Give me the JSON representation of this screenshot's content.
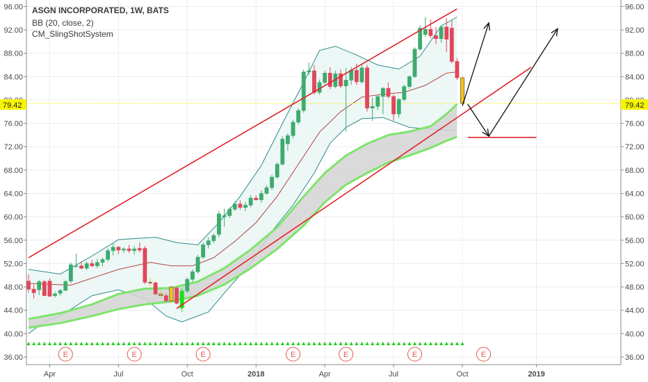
{
  "legend": {
    "title": "ASGN INCORPORATED, 1W, BATS",
    "line1": "BB (20, close, 2)",
    "line2": "CM_SlingShotSystem"
  },
  "colors": {
    "up": "#3dab6d",
    "down": "#e0475a",
    "slingshot_candle": "#f6c31c",
    "slingshot_up": "#17e017",
    "bb_line": "#2f8a8a",
    "bb_fill": "#eaf6f5",
    "basis": "#b2453f",
    "ema_band": "#7de46a",
    "ema_fill": "#d4d4d4",
    "trendline": "#e0222a",
    "arrow": "#111111",
    "current_price_line": "#f5f500",
    "triangle": "#17d017",
    "earnings": "#e0584a"
  },
  "current_price": "79.42",
  "y_ticks": [
    "96.00",
    "92.00",
    "88.00",
    "84.00",
    "80.00",
    "76.00",
    "72.00",
    "68.00",
    "64.00",
    "60.00",
    "56.00",
    "52.00",
    "48.00",
    "44.00",
    "40.00",
    "36.00"
  ],
  "x_ticks": [
    "Apr",
    "Jul",
    "Oct",
    "2018",
    "Apr",
    "Jul",
    "Oct",
    "2019"
  ],
  "earnings_label": "E",
  "chart_data": {
    "type": "candlestick",
    "interval": "1W",
    "ylim": [
      35.0,
      97.6
    ],
    "grid": true,
    "x_axis": {
      "start": "2017-03-06",
      "tick_labels": [
        "Apr",
        "Jul",
        "Oct",
        "2018",
        "Apr",
        "Jul",
        "Oct",
        "2019"
      ],
      "tick_dates": [
        "2017-04-03",
        "2017-07-03",
        "2017-10-02",
        "2018-01-01",
        "2018-04-02",
        "2018-07-02",
        "2018-10-01",
        "2019-01-07"
      ]
    },
    "candles": [
      {
        "date": "2017-03-06",
        "o": 49.0,
        "h": 50.2,
        "l": 47.0,
        "c": 47.6
      },
      {
        "date": "2017-03-13",
        "o": 47.6,
        "h": 48.4,
        "l": 46.0,
        "c": 47.0
      },
      {
        "date": "2017-03-20",
        "o": 47.5,
        "h": 49.2,
        "l": 46.6,
        "c": 48.9
      },
      {
        "date": "2017-03-27",
        "o": 48.9,
        "h": 49.2,
        "l": 46.4,
        "c": 46.5
      },
      {
        "date": "2017-04-03",
        "o": 49.0,
        "h": 49.5,
        "l": 46.3,
        "c": 46.4
      },
      {
        "date": "2017-04-10",
        "o": 46.5,
        "h": 47.2,
        "l": 46.2,
        "c": 46.8
      },
      {
        "date": "2017-04-17",
        "o": 46.9,
        "h": 47.6,
        "l": 46.5,
        "c": 47.4
      },
      {
        "date": "2017-04-24",
        "o": 47.4,
        "h": 49.2,
        "l": 47.3,
        "c": 48.9
      },
      {
        "date": "2017-05-01",
        "o": 49.0,
        "h": 52.2,
        "l": 48.6,
        "c": 51.8
      },
      {
        "date": "2017-05-08",
        "o": 51.5,
        "h": 53.7,
        "l": 51.3,
        "c": 51.6
      },
      {
        "date": "2017-05-15",
        "o": 51.6,
        "h": 52.4,
        "l": 51.0,
        "c": 51.2
      },
      {
        "date": "2017-05-22",
        "o": 51.2,
        "h": 52.3,
        "l": 50.9,
        "c": 52.0
      },
      {
        "date": "2017-05-29",
        "o": 52.0,
        "h": 52.6,
        "l": 51.4,
        "c": 51.6
      },
      {
        "date": "2017-06-05",
        "o": 51.6,
        "h": 52.8,
        "l": 51.2,
        "c": 52.2
      },
      {
        "date": "2017-06-12",
        "o": 52.2,
        "h": 53.0,
        "l": 51.5,
        "c": 52.7
      },
      {
        "date": "2017-06-19",
        "o": 52.7,
        "h": 54.6,
        "l": 52.3,
        "c": 54.2
      },
      {
        "date": "2017-06-26",
        "o": 54.2,
        "h": 55.4,
        "l": 53.4,
        "c": 54.8
      },
      {
        "date": "2017-07-03",
        "o": 54.8,
        "h": 55.0,
        "l": 53.6,
        "c": 54.3
      },
      {
        "date": "2017-07-10",
        "o": 54.3,
        "h": 54.8,
        "l": 53.8,
        "c": 54.5
      },
      {
        "date": "2017-07-17",
        "o": 54.5,
        "h": 55.2,
        "l": 53.8,
        "c": 54.2
      },
      {
        "date": "2017-07-24",
        "o": 54.2,
        "h": 55.0,
        "l": 53.5,
        "c": 54.5
      },
      {
        "date": "2017-07-31",
        "o": 54.6,
        "h": 55.6,
        "l": 53.9,
        "c": 54.3
      },
      {
        "date": "2017-08-07",
        "o": 54.6,
        "h": 55.0,
        "l": 48.5,
        "c": 48.8
      },
      {
        "date": "2017-08-14",
        "o": 48.8,
        "h": 49.5,
        "l": 48.0,
        "c": 48.7
      },
      {
        "date": "2017-08-21",
        "o": 48.7,
        "h": 48.9,
        "l": 46.6,
        "c": 46.8
      },
      {
        "date": "2017-08-28",
        "o": 46.8,
        "h": 47.4,
        "l": 46.2,
        "c": 46.5
      },
      {
        "date": "2017-09-04",
        "o": 46.5,
        "h": 46.9,
        "l": 45.4,
        "c": 45.6
      },
      {
        "date": "2017-09-11",
        "o": 45.6,
        "h": 48.2,
        "l": 45.3,
        "c": 48.0
      },
      {
        "date": "2017-09-18",
        "o": 47.8,
        "h": 48.0,
        "l": 45.0,
        "c": 45.2
      },
      {
        "date": "2017-09-25",
        "o": 44.4,
        "h": 47.8,
        "l": 43.7,
        "c": 47.3
      },
      {
        "date": "2017-10-02",
        "o": 47.3,
        "h": 49.6,
        "l": 47.0,
        "c": 49.3
      },
      {
        "date": "2017-10-09",
        "o": 49.3,
        "h": 51.0,
        "l": 48.9,
        "c": 50.6
      },
      {
        "date": "2017-10-16",
        "o": 50.6,
        "h": 53.5,
        "l": 50.3,
        "c": 53.1
      },
      {
        "date": "2017-10-23",
        "o": 53.1,
        "h": 55.6,
        "l": 52.8,
        "c": 55.2
      },
      {
        "date": "2017-10-30",
        "o": 55.2,
        "h": 56.5,
        "l": 54.6,
        "c": 55.9
      },
      {
        "date": "2017-11-06",
        "o": 55.9,
        "h": 57.1,
        "l": 55.5,
        "c": 56.8
      },
      {
        "date": "2017-11-13",
        "o": 57.0,
        "h": 61.0,
        "l": 56.5,
        "c": 60.5
      },
      {
        "date": "2017-11-20",
        "o": 60.0,
        "h": 61.4,
        "l": 58.3,
        "c": 60.2
      },
      {
        "date": "2017-11-27",
        "o": 60.2,
        "h": 61.6,
        "l": 59.8,
        "c": 61.3
      },
      {
        "date": "2017-12-04",
        "o": 61.3,
        "h": 62.7,
        "l": 61.0,
        "c": 62.2
      },
      {
        "date": "2017-12-11",
        "o": 62.2,
        "h": 62.8,
        "l": 61.2,
        "c": 61.6
      },
      {
        "date": "2017-12-18",
        "o": 61.6,
        "h": 62.6,
        "l": 61.0,
        "c": 62.0
      },
      {
        "date": "2017-12-25",
        "o": 62.0,
        "h": 63.7,
        "l": 61.6,
        "c": 63.2
      },
      {
        "date": "2018-01-01",
        "o": 63.2,
        "h": 63.7,
        "l": 62.8,
        "c": 62.9
      },
      {
        "date": "2018-01-08",
        "o": 62.9,
        "h": 64.5,
        "l": 62.4,
        "c": 64.0
      },
      {
        "date": "2018-01-15",
        "o": 64.0,
        "h": 65.4,
        "l": 63.8,
        "c": 65.0
      },
      {
        "date": "2018-01-22",
        "o": 65.0,
        "h": 67.2,
        "l": 64.6,
        "c": 66.8
      },
      {
        "date": "2018-01-29",
        "o": 66.8,
        "h": 69.3,
        "l": 66.5,
        "c": 69.0
      },
      {
        "date": "2018-02-05",
        "o": 69.0,
        "h": 73.8,
        "l": 68.8,
        "c": 73.3
      },
      {
        "date": "2018-02-12",
        "o": 72.5,
        "h": 74.3,
        "l": 71.3,
        "c": 73.9
      },
      {
        "date": "2018-02-19",
        "o": 73.9,
        "h": 76.6,
        "l": 73.4,
        "c": 76.2
      },
      {
        "date": "2018-02-26",
        "o": 76.2,
        "h": 78.6,
        "l": 75.8,
        "c": 78.2
      },
      {
        "date": "2018-03-05",
        "o": 78.2,
        "h": 85.2,
        "l": 77.8,
        "c": 84.8
      },
      {
        "date": "2018-03-12",
        "o": 84.8,
        "h": 86.4,
        "l": 84.3,
        "c": 85.0
      },
      {
        "date": "2018-03-19",
        "o": 85.0,
        "h": 86.0,
        "l": 80.9,
        "c": 81.3
      },
      {
        "date": "2018-03-26",
        "o": 81.3,
        "h": 83.5,
        "l": 80.9,
        "c": 83.0
      },
      {
        "date": "2018-04-02",
        "o": 83.0,
        "h": 85.0,
        "l": 82.7,
        "c": 84.6
      },
      {
        "date": "2018-04-09",
        "o": 84.6,
        "h": 85.6,
        "l": 81.9,
        "c": 82.3
      },
      {
        "date": "2018-04-16",
        "o": 82.3,
        "h": 85.0,
        "l": 82.0,
        "c": 84.5
      },
      {
        "date": "2018-04-23",
        "o": 84.5,
        "h": 85.2,
        "l": 82.0,
        "c": 82.4
      },
      {
        "date": "2018-04-30",
        "o": 82.4,
        "h": 85.5,
        "l": 74.6,
        "c": 83.4
      },
      {
        "date": "2018-05-07",
        "o": 83.4,
        "h": 85.6,
        "l": 82.6,
        "c": 85.1
      },
      {
        "date": "2018-05-14",
        "o": 85.1,
        "h": 86.2,
        "l": 82.6,
        "c": 83.1
      },
      {
        "date": "2018-05-21",
        "o": 83.1,
        "h": 86.0,
        "l": 82.8,
        "c": 85.5
      },
      {
        "date": "2018-05-28",
        "o": 85.5,
        "h": 86.0,
        "l": 78.0,
        "c": 78.6
      },
      {
        "date": "2018-06-04",
        "o": 78.6,
        "h": 80.4,
        "l": 76.4,
        "c": 78.9
      },
      {
        "date": "2018-06-11",
        "o": 78.9,
        "h": 80.8,
        "l": 78.3,
        "c": 80.6
      },
      {
        "date": "2018-06-18",
        "o": 80.6,
        "h": 82.2,
        "l": 77.6,
        "c": 82.0
      },
      {
        "date": "2018-06-25",
        "o": 82.0,
        "h": 83.0,
        "l": 80.3,
        "c": 80.6
      },
      {
        "date": "2018-07-02",
        "o": 80.6,
        "h": 80.9,
        "l": 76.5,
        "c": 77.6
      },
      {
        "date": "2018-07-09",
        "o": 77.6,
        "h": 80.3,
        "l": 77.0,
        "c": 80.1
      },
      {
        "date": "2018-07-16",
        "o": 80.1,
        "h": 82.6,
        "l": 79.8,
        "c": 82.3
      },
      {
        "date": "2018-07-23",
        "o": 82.3,
        "h": 84.2,
        "l": 81.9,
        "c": 84.0
      },
      {
        "date": "2018-07-30",
        "o": 84.0,
        "h": 89.0,
        "l": 83.8,
        "c": 88.7
      },
      {
        "date": "2018-08-06",
        "o": 88.7,
        "h": 92.8,
        "l": 88.4,
        "c": 92.3
      },
      {
        "date": "2018-08-13",
        "o": 91.2,
        "h": 94.2,
        "l": 90.8,
        "c": 92.1
      },
      {
        "date": "2018-08-20",
        "o": 92.1,
        "h": 93.8,
        "l": 90.6,
        "c": 91.0
      },
      {
        "date": "2018-08-27",
        "o": 91.0,
        "h": 92.5,
        "l": 89.6,
        "c": 90.5
      },
      {
        "date": "2018-09-03",
        "o": 90.5,
        "h": 92.8,
        "l": 89.8,
        "c": 92.5
      },
      {
        "date": "2018-09-10",
        "o": 92.5,
        "h": 94.0,
        "l": 88.2,
        "c": 90.4
      },
      {
        "date": "2018-09-17",
        "o": 92.3,
        "h": 93.6,
        "l": 86.3,
        "c": 86.6
      },
      {
        "date": "2018-09-24",
        "o": 86.6,
        "h": 87.2,
        "l": 83.4,
        "c": 83.8
      },
      {
        "date": "2018-10-01",
        "o": 83.8,
        "h": 84.2,
        "l": 79.2,
        "c": 79.42
      }
    ],
    "slingshot_weeks": [
      "2017-08-14",
      "2017-08-28",
      "2017-09-11",
      "2018-10-01"
    ],
    "slingshot_up_weeks": [
      "2017-09-25"
    ],
    "bollinger_bands": {
      "length": 20,
      "source": "close",
      "mult": 2,
      "basis": [
        [
          0,
          48.6
        ],
        [
          8,
          48.3
        ],
        [
          17,
          51.0
        ],
        [
          23,
          52.2
        ],
        [
          27,
          51.6
        ],
        [
          31,
          51.6
        ],
        [
          35,
          53.0
        ],
        [
          39,
          55.8
        ],
        [
          43,
          59.0
        ],
        [
          47,
          63.5
        ],
        [
          51,
          69.0
        ],
        [
          55,
          74.5
        ],
        [
          59,
          78.0
        ],
        [
          63,
          80.5
        ],
        [
          67,
          81.0
        ],
        [
          71,
          81.3
        ],
        [
          75,
          82.5
        ],
        [
          79,
          84.6
        ],
        [
          81,
          84.8
        ]
      ],
      "upper": [
        [
          0,
          51.0
        ],
        [
          6,
          50.2
        ],
        [
          12,
          53.3
        ],
        [
          17,
          56.1
        ],
        [
          24,
          56.5
        ],
        [
          28,
          55.6
        ],
        [
          32,
          55.2
        ],
        [
          36,
          59.0
        ],
        [
          40,
          63.5
        ],
        [
          44,
          68.8
        ],
        [
          48,
          76.0
        ],
        [
          52,
          83.0
        ],
        [
          55,
          88.5
        ],
        [
          58,
          89.2
        ],
        [
          62,
          87.7
        ],
        [
          66,
          86.0
        ],
        [
          70,
          85.3
        ],
        [
          74,
          87.5
        ],
        [
          78,
          92.7
        ],
        [
          81,
          94.2
        ]
      ],
      "lower": [
        [
          0,
          40.0
        ],
        [
          3,
          42.0
        ],
        [
          6,
          43.0
        ],
        [
          12,
          46.5
        ],
        [
          17,
          47.5
        ],
        [
          22,
          46.0
        ],
        [
          26,
          43.0
        ],
        [
          29,
          42.0
        ],
        [
          34,
          43.7
        ],
        [
          38,
          48.0
        ],
        [
          42,
          52.0
        ],
        [
          46,
          57.5
        ],
        [
          50,
          62.0
        ],
        [
          54,
          67.5
        ],
        [
          57,
          72.6
        ],
        [
          60,
          75.3
        ],
        [
          63,
          76.8
        ],
        [
          67,
          77.0
        ],
        [
          72,
          75.3
        ],
        [
          76,
          75.0
        ],
        [
          81,
          74.7
        ]
      ]
    },
    "slingshot_emas": {
      "fast": [
        [
          0,
          42.5
        ],
        [
          6,
          43.5
        ],
        [
          12,
          45.0
        ],
        [
          17,
          46.8
        ],
        [
          22,
          47.7
        ],
        [
          27,
          47.8
        ],
        [
          32,
          48.9
        ],
        [
          37,
          51.2
        ],
        [
          42,
          54.4
        ],
        [
          47,
          58.2
        ],
        [
          52,
          63.5
        ],
        [
          56,
          67.5
        ],
        [
          60,
          70.5
        ],
        [
          64,
          72.5
        ],
        [
          68,
          74.0
        ],
        [
          72,
          74.6
        ],
        [
          76,
          75.5
        ],
        [
          79,
          77.6
        ],
        [
          81,
          79.3
        ]
      ],
      "slow": [
        [
          0,
          41.0
        ],
        [
          6,
          41.8
        ],
        [
          12,
          43.0
        ],
        [
          17,
          44.2
        ],
        [
          22,
          45.0
        ],
        [
          27,
          45.5
        ],
        [
          32,
          46.5
        ],
        [
          37,
          48.4
        ],
        [
          42,
          51.2
        ],
        [
          47,
          54.5
        ],
        [
          52,
          58.5
        ],
        [
          56,
          62.5
        ],
        [
          60,
          65.5
        ],
        [
          64,
          67.5
        ],
        [
          68,
          69.3
        ],
        [
          72,
          70.5
        ],
        [
          76,
          71.8
        ],
        [
          79,
          73.0
        ],
        [
          81,
          73.7
        ]
      ]
    },
    "earnings_weeks": [
      "2017-04-24",
      "2017-07-24",
      "2017-10-23",
      "2018-02-19",
      "2018-04-30",
      "2018-07-30",
      "2018-10-29"
    ],
    "drawings": {
      "trendlines": [
        {
          "from": [
            "2017-03-06",
            53.0
          ],
          "to": [
            "2018-09-24",
            95.6
          ]
        },
        {
          "from": [
            "2017-09-18",
            44.3
          ],
          "to": [
            "2018-12-31",
            85.6
          ]
        }
      ],
      "level": {
        "from": [
          "2018-10-08",
          73.6
        ],
        "to": [
          "2019-01-07",
          73.6
        ]
      },
      "arrows": [
        {
          "from": [
            "2018-10-01",
            79.0
          ],
          "to": [
            "2018-11-05",
            93.2
          ]
        },
        {
          "from": [
            "2018-10-08",
            79.3
          ],
          "to": [
            "2018-11-05",
            73.8
          ]
        },
        {
          "from": [
            "2018-11-05",
            73.8
          ],
          "to": [
            "2019-02-04",
            92.2
          ]
        }
      ]
    }
  }
}
